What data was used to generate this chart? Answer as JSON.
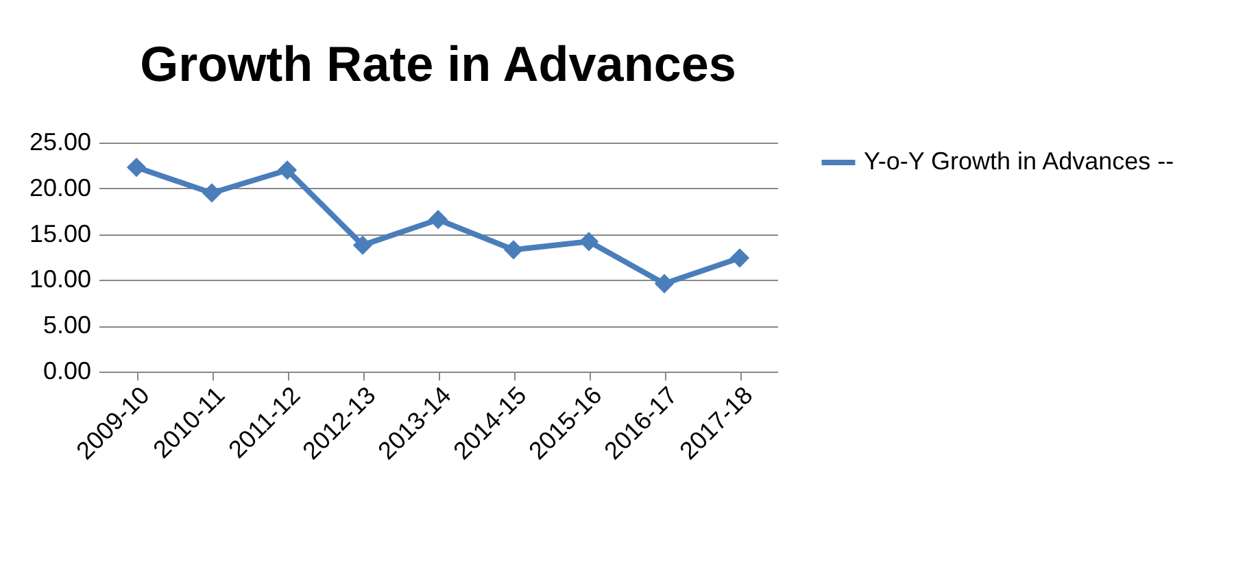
{
  "chart_data": {
    "type": "line",
    "title": "Growth Rate in Advances",
    "categories": [
      "2009-10",
      "2010-11",
      "2011-12",
      "2012-13",
      "2013-14",
      "2014-15",
      "2015-16",
      "2016-17",
      "2017-18"
    ],
    "series": [
      {
        "name": "Y-o-Y Growth in Advances --",
        "color": "#4a7ebb",
        "values": [
          22.3,
          19.5,
          22.0,
          13.8,
          16.6,
          13.3,
          14.2,
          9.6,
          12.4
        ]
      }
    ],
    "ylim": [
      0,
      25
    ],
    "yticks": [
      {
        "value": 0,
        "label": "0.00"
      },
      {
        "value": 5,
        "label": "5.00"
      },
      {
        "value": 10,
        "label": "10.00"
      },
      {
        "value": 15,
        "label": "15.00"
      },
      {
        "value": 20,
        "label": "20.00"
      },
      {
        "value": 25,
        "label": "25.00"
      }
    ],
    "grid": "y",
    "legend": "right",
    "marker": "diamond",
    "line_style": "solid"
  }
}
